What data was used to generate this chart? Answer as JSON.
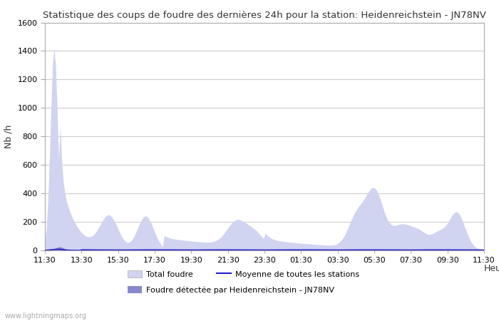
{
  "title": "Statistique des coups de foudre des dernières 24h pour la station: Heidenreichstein - JN78NV",
  "ylabel": "Nb /h",
  "xlabel": "Heure",
  "x_ticks": [
    "11:30",
    "13:30",
    "15:30",
    "17:30",
    "19:30",
    "21:30",
    "23:30",
    "01:30",
    "03:30",
    "05:30",
    "07:30",
    "09:30",
    "11:30"
  ],
  "ylim": [
    0,
    1600
  ],
  "yticks": [
    0,
    200,
    400,
    600,
    800,
    1000,
    1200,
    1400,
    1600
  ],
  "bg_color": "#ffffff",
  "grid_color": "#cccccc",
  "fill_light_color": "#d0d4f0",
  "fill_dark_color": "#8888cc",
  "line_color": "#2222cc",
  "watermark": "www.lightningmaps.org",
  "legend_total": "Total foudre",
  "legend_detected": "Foudre détectée par Heidenreichstein - JN78NV",
  "legend_mean": "Moyenne de toutes les stations"
}
